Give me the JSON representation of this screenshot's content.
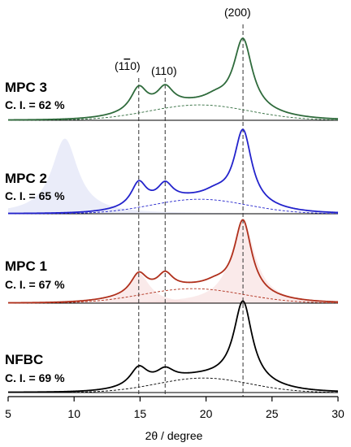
{
  "chart_data": {
    "type": "line",
    "xlabel": "2θ / degree",
    "xlim": [
      5,
      30
    ],
    "xticks": [
      5,
      10,
      15,
      20,
      25,
      30
    ],
    "reference_lines": [
      {
        "x": 14.9,
        "label_main": "(1",
        "label_bar": "1",
        "label_tail": "0)"
      },
      {
        "x": 16.9,
        "label": "(110)"
      },
      {
        "x": 22.8,
        "label": "(200)"
      }
    ],
    "series": [
      {
        "name": "MPC 3",
        "ci": "C. I. = 62 %",
        "color": "#2f6b3c",
        "fill": "#d5e6d8",
        "amorphous": {
          "center": 19.5,
          "sigma": 3.8,
          "height": 0.18
        },
        "peaks": [
          {
            "center": 14.9,
            "height": 0.28,
            "width": 0.75
          },
          {
            "center": 16.9,
            "height": 0.22,
            "width": 0.75
          },
          {
            "center": 20.7,
            "height": 0.06,
            "width": 1.0
          },
          {
            "center": 22.8,
            "height": 0.82,
            "width": 0.85
          }
        ],
        "fluff": []
      },
      {
        "name": "MPC 2",
        "ci": "C. I. = 65 %",
        "color": "#2323cc",
        "fill": "#d8ddf4",
        "amorphous": {
          "center": 19.5,
          "sigma": 3.6,
          "height": 0.17
        },
        "peaks": [
          {
            "center": 14.9,
            "height": 0.28,
            "width": 0.7
          },
          {
            "center": 16.9,
            "height": 0.2,
            "width": 0.7
          },
          {
            "center": 20.7,
            "height": 0.06,
            "width": 1.0
          },
          {
            "center": 22.8,
            "height": 0.86,
            "width": 0.8
          }
        ],
        "fluff": [
          {
            "center": 9.3,
            "height": 0.88,
            "width": 1.2
          }
        ]
      },
      {
        "name": "MPC 1",
        "ci": "C. I. = 67 %",
        "color": "#b0301c",
        "fill": "#f5d8d8",
        "amorphous": {
          "center": 19.0,
          "sigma": 3.8,
          "height": 0.17
        },
        "peaks": [
          {
            "center": 14.9,
            "height": 0.24,
            "width": 0.75
          },
          {
            "center": 16.9,
            "height": 0.18,
            "width": 0.7
          },
          {
            "center": 20.7,
            "height": 0.05,
            "width": 1.0
          },
          {
            "center": 22.8,
            "height": 0.86,
            "width": 0.8
          }
        ],
        "fluff": [
          {
            "center": 22.8,
            "height": 0.96,
            "width": 1.1
          },
          {
            "center": 14.9,
            "height": 0.35,
            "width": 1.0
          }
        ]
      },
      {
        "name": "NFBC",
        "ci": "C. I. = 69 %",
        "color": "#000000",
        "fill": "none",
        "amorphous": {
          "center": 19.8,
          "sigma": 3.5,
          "height": 0.17
        },
        "peaks": [
          {
            "center": 14.9,
            "height": 0.22,
            "width": 0.8
          },
          {
            "center": 16.9,
            "height": 0.13,
            "width": 0.8
          },
          {
            "center": 22.8,
            "height": 0.95,
            "width": 0.85
          }
        ],
        "fluff": []
      }
    ]
  }
}
